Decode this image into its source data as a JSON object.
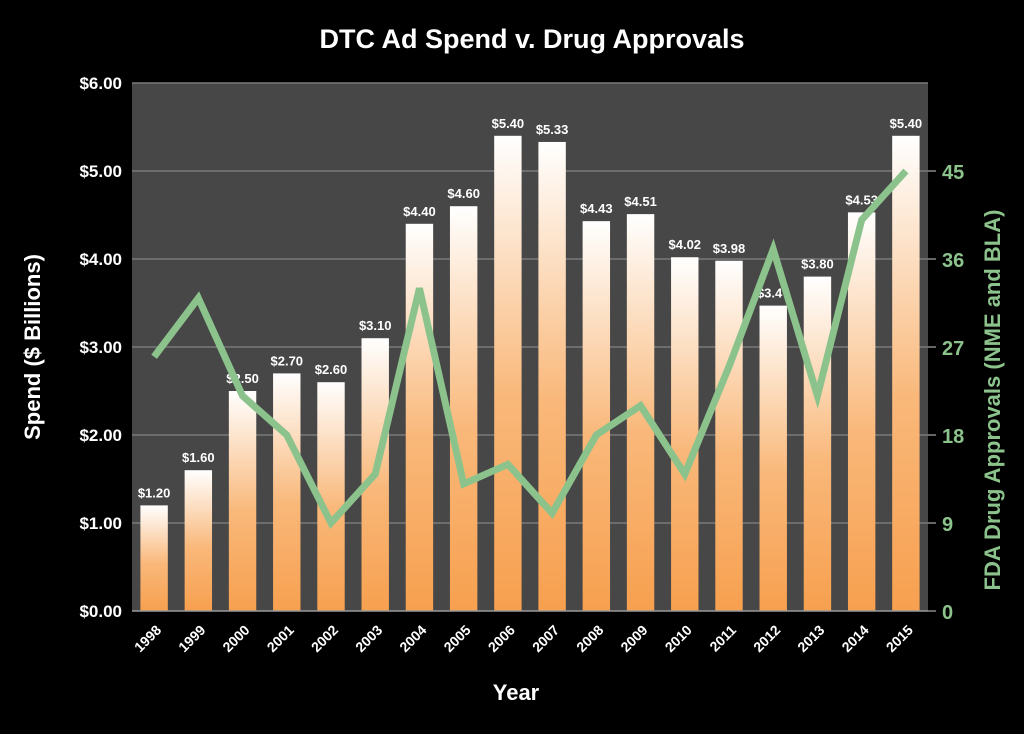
{
  "chart_data": {
    "type": "bar+line",
    "title": "DTC Ad Spend v. Drug Approvals",
    "xlabel": "Year",
    "ylabel": "Spend ($ Billions)",
    "y2label": "FDA Drug Approvals (NME and BLA)",
    "ylim": [
      0,
      6
    ],
    "y2lim": [
      0,
      54
    ],
    "yticks": [
      "$0.00",
      "$1.00",
      "$2.00",
      "$3.00",
      "$4.00",
      "$5.00",
      "$6.00"
    ],
    "y2ticks": [
      "0",
      "9",
      "18",
      "27",
      "36",
      "45"
    ],
    "grid": true,
    "categories": [
      "1998",
      "1999",
      "2000",
      "2001",
      "2002",
      "2003",
      "2004",
      "2005",
      "2006",
      "2007",
      "2008",
      "2009",
      "2010",
      "2011",
      "2012",
      "2013",
      "2014",
      "2015"
    ],
    "series": [
      {
        "name": "DTC Ad Spend",
        "type": "bar",
        "axis": "left",
        "values": [
          1.2,
          1.6,
          2.5,
          2.7,
          2.6,
          3.1,
          4.4,
          4.6,
          5.4,
          5.33,
          4.43,
          4.51,
          4.02,
          3.98,
          3.47,
          3.8,
          4.53,
          5.4
        ],
        "labels": [
          "$1.20",
          "$1.60",
          "$2.50",
          "$2.70",
          "$2.60",
          "$3.10",
          "$4.40",
          "$4.60",
          "$5.40",
          "$5.33",
          "$4.43",
          "$4.51",
          "$4.02",
          "$3.98",
          "$3.47",
          "$3.80",
          "$4.53",
          "$5.40"
        ]
      },
      {
        "name": "FDA Drug Approvals",
        "type": "line",
        "axis": "right",
        "values": [
          26,
          32,
          22,
          18,
          9,
          14,
          33,
          13,
          15,
          10,
          18,
          21,
          14,
          25,
          37,
          22,
          40,
          45
        ]
      }
    ],
    "colors": {
      "bar_top": "#ffffff",
      "bar_bottom": "#f7a04f",
      "line": "#8cc38c",
      "plot_bg": "#474747",
      "grid": "#7a7a7a",
      "right_axis": "#8cc38c"
    }
  }
}
